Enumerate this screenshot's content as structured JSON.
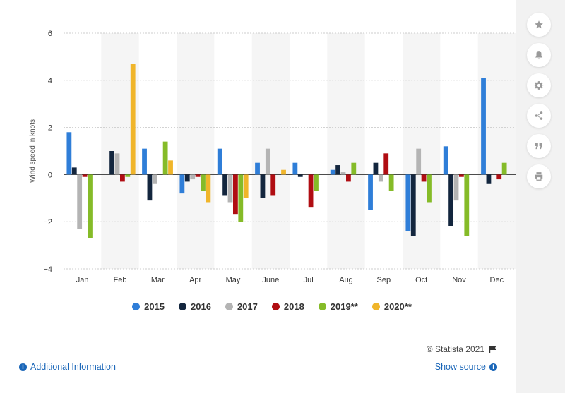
{
  "chart_data": {
    "type": "bar",
    "title": "",
    "ylabel": "Wind speed in knots",
    "xlabel": "",
    "ylim": [
      -4,
      6
    ],
    "yticks": [
      "6",
      "4",
      "2",
      "0",
      "−2",
      "−4"
    ],
    "categories": [
      "Jan",
      "Feb",
      "Mar",
      "Apr",
      "May",
      "June",
      "Jul",
      "Aug",
      "Sep",
      "Oct",
      "Nov",
      "Dec"
    ],
    "series": [
      {
        "name": "2015",
        "color": "#2f7ed8",
        "values": [
          1.8,
          null,
          1.1,
          -0.8,
          1.1,
          0.5,
          0.5,
          0.2,
          -1.5,
          -2.4,
          1.2,
          4.1
        ]
      },
      {
        "name": "2016",
        "color": "#13263e",
        "values": [
          0.3,
          1.0,
          -1.1,
          -0.3,
          -0.9,
          -1.0,
          -0.1,
          0.4,
          0.5,
          -2.6,
          -2.2,
          -0.4
        ]
      },
      {
        "name": "2017",
        "color": "#b4b4b4",
        "values": [
          -2.3,
          0.9,
          -0.4,
          -0.2,
          -1.2,
          1.1,
          null,
          0.1,
          -0.3,
          1.1,
          -1.1,
          null
        ]
      },
      {
        "name": "2018",
        "color": "#b00d12",
        "values": [
          -0.1,
          -0.3,
          null,
          -0.1,
          -1.7,
          -0.9,
          -1.4,
          -0.3,
          0.9,
          -0.3,
          -0.1,
          -0.2
        ]
      },
      {
        "name": "2019**",
        "color": "#85bb28",
        "values": [
          -2.7,
          -0.1,
          1.4,
          -0.7,
          -2.0,
          null,
          -0.7,
          0.5,
          -0.7,
          -1.2,
          -2.6,
          0.5
        ]
      },
      {
        "name": "2020**",
        "color": "#f0b52a",
        "values": [
          null,
          4.7,
          0.6,
          -1.2,
          -1.0,
          0.2,
          null,
          null,
          null,
          null,
          null,
          null
        ]
      }
    ],
    "grid": true,
    "legend_position": "bottom-center"
  },
  "footer": {
    "copyright": "© Statista 2021",
    "additional_info": "Additional Information",
    "show_source": "Show source"
  },
  "sidebar": {
    "icons": [
      "star-icon",
      "bell-icon",
      "gear-icon",
      "share-icon",
      "quote-icon",
      "print-icon"
    ]
  }
}
